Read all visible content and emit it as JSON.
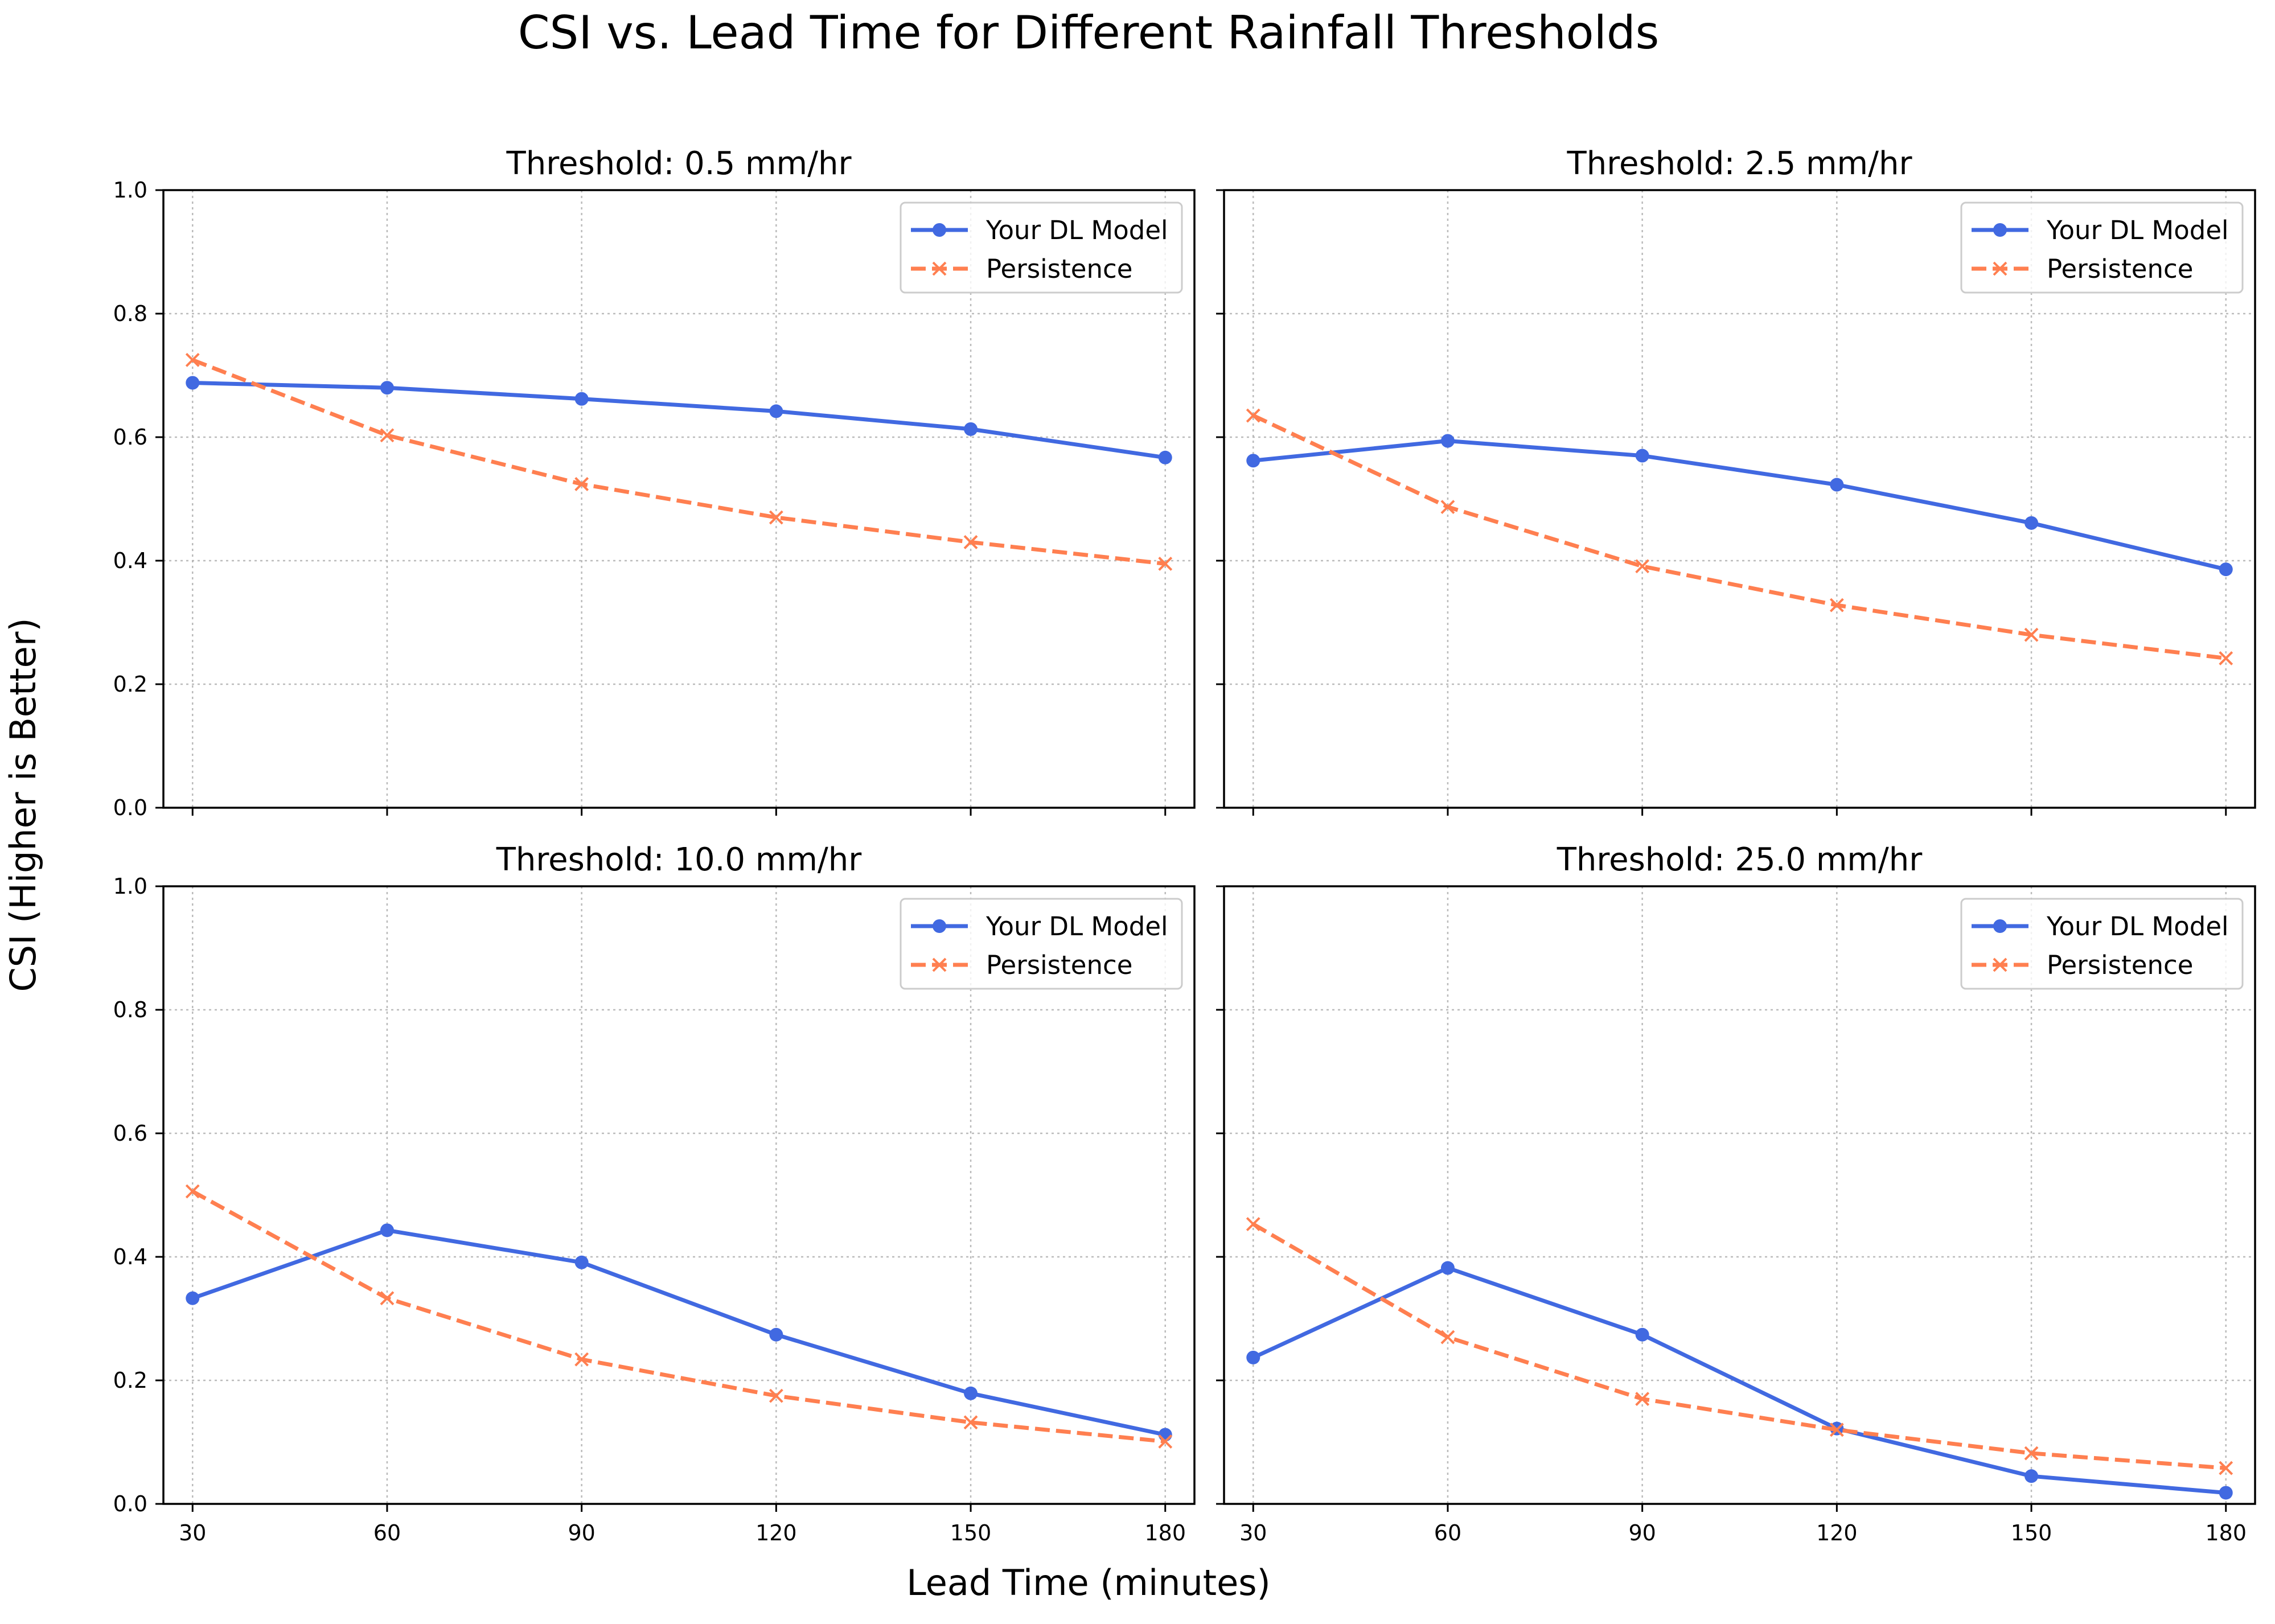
{
  "chart_data": {
    "type": "line",
    "suptitle": "CSI vs. Lead Time for Different Rainfall Thresholds",
    "xlabel": "Lead Time (minutes)",
    "ylabel": "CSI (Higher is Better)",
    "x": [
      30,
      60,
      90,
      120,
      150,
      180
    ],
    "ylim": [
      0,
      1.0
    ],
    "yticks": [
      "0.0",
      "0.2",
      "0.4",
      "0.6",
      "0.8",
      "1.0"
    ],
    "xticks": [
      "30",
      "60",
      "90",
      "120",
      "150",
      "180"
    ],
    "grid": true,
    "legend_position": "upper right",
    "series_styles": [
      {
        "name": "Your DL Model",
        "color": "#4169E1",
        "marker": "circle",
        "dash": "solid"
      },
      {
        "name": "Persistence",
        "color": "#FF7F50",
        "marker": "x",
        "dash": "dashed"
      }
    ],
    "panels": [
      {
        "title": "Threshold: 0.5 mm/hr",
        "series": [
          {
            "name": "Your DL Model",
            "values": [
              0.688,
              0.68,
              0.662,
              0.642,
              0.613,
              0.567
            ]
          },
          {
            "name": "Persistence",
            "values": [
              0.725,
              0.603,
              0.524,
              0.47,
              0.43,
              0.395
            ]
          }
        ]
      },
      {
        "title": "Threshold: 2.5 mm/hr",
        "series": [
          {
            "name": "Your DL Model",
            "values": [
              0.562,
              0.594,
              0.57,
              0.523,
              0.461,
              0.386
            ]
          },
          {
            "name": "Persistence",
            "values": [
              0.635,
              0.487,
              0.391,
              0.328,
              0.28,
              0.242
            ]
          }
        ]
      },
      {
        "title": "Threshold: 10.0 mm/hr",
        "series": [
          {
            "name": "Your DL Model",
            "values": [
              0.333,
              0.443,
              0.391,
              0.274,
              0.179,
              0.112
            ]
          },
          {
            "name": "Persistence",
            "values": [
              0.506,
              0.333,
              0.234,
              0.175,
              0.132,
              0.101
            ]
          }
        ]
      },
      {
        "title": "Threshold: 25.0 mm/hr",
        "series": [
          {
            "name": "Your DL Model",
            "values": [
              0.237,
              0.382,
              0.274,
              0.122,
              0.045,
              0.018
            ]
          },
          {
            "name": "Persistence",
            "values": [
              0.453,
              0.27,
              0.17,
              0.12,
              0.082,
              0.058
            ]
          }
        ]
      }
    ]
  }
}
